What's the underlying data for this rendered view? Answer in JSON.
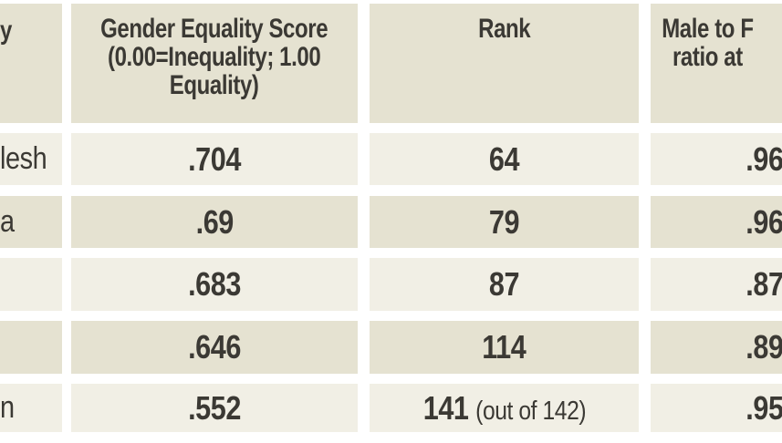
{
  "table": {
    "headers": {
      "country_fragment": "y",
      "score": "Gender Equality Score\n(0.00=Inequality; 1.00\nEquality)",
      "rank": "Rank",
      "ratio_fragment": "Male to F\nratio at"
    },
    "rows": [
      {
        "country_fragment": "lesh",
        "score": ".704",
        "rank": "64",
        "ratio": ".96"
      },
      {
        "country_fragment": "a",
        "score": ".69",
        "rank": "79",
        "ratio": ".96"
      },
      {
        "country_fragment": "",
        "score": ".683",
        "rank": "87",
        "ratio": ".87"
      },
      {
        "country_fragment": "",
        "score": ".646",
        "rank": "114",
        "ratio": ".89"
      },
      {
        "country_fragment": "n",
        "score": ".552",
        "rank": "141",
        "rank_note": "(out of 142)",
        "ratio": ".95"
      }
    ]
  },
  "chart_data": {
    "type": "table",
    "title": "",
    "columns": [
      "y",
      "Gender Equality Score (0.00=Inequality; 1.00 Equality)",
      "Rank",
      "Male to F ratio at"
    ],
    "rows": [
      [
        "lesh",
        ".704",
        "64",
        ".96"
      ],
      [
        "a",
        ".69",
        "79",
        ".96"
      ],
      [
        "",
        ".683",
        "87",
        ".87"
      ],
      [
        "",
        ".646",
        "114",
        ".89"
      ],
      [
        "n",
        ".552",
        "141 (out of 142)",
        ".95"
      ]
    ],
    "layout_hints": "first and last columns are clipped by the image edges; rows alternate light/dark beige with white gutters"
  },
  "colors": {
    "row_light": "#f1efe5",
    "row_dark": "#e5e2d1",
    "header_bg": "#e5e2d1",
    "text": "#3b3934",
    "gutter": "#ffffff"
  }
}
